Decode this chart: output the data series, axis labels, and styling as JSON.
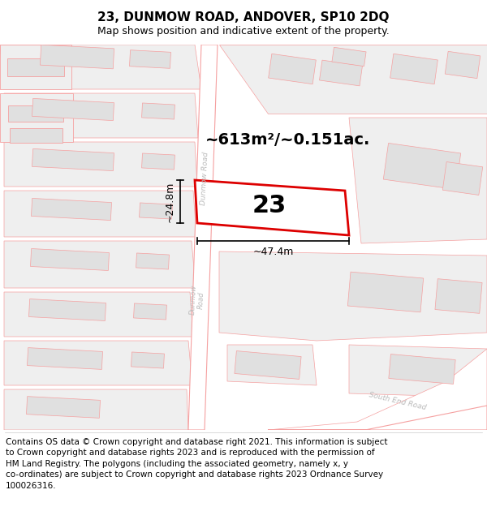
{
  "title": "23, DUNMOW ROAD, ANDOVER, SP10 2DQ",
  "subtitle": "Map shows position and indicative extent of the property.",
  "footer": "Contains OS data © Crown copyright and database right 2021. This information is subject\nto Crown copyright and database rights 2023 and is reproduced with the permission of\nHM Land Registry. The polygons (including the associated geometry, namely x, y\nco-ordinates) are subject to Crown copyright and database rights 2023 Ordnance Survey\n100026316.",
  "area_label": "~613m²/~0.151ac.",
  "number_label": "23",
  "width_label": "~47.4m",
  "height_label": "~24.8m",
  "map_bg": "#f7f7f7",
  "road_fill": "#ffffff",
  "road_stroke": "#f5a0a0",
  "plot_fill": "#efefef",
  "plot_stroke": "#f5a0a0",
  "building_fill": "#e0e0e0",
  "building_stroke": "#f5a0a0",
  "property_fill": "#ffffff",
  "property_stroke": "#dd0000",
  "dim_color": "#000000",
  "road_label_color": "#bbbbbb",
  "title_fontsize": 11,
  "subtitle_fontsize": 9,
  "footer_fontsize": 7.5,
  "area_fontsize": 14,
  "number_fontsize": 22,
  "dim_fontsize": 9
}
